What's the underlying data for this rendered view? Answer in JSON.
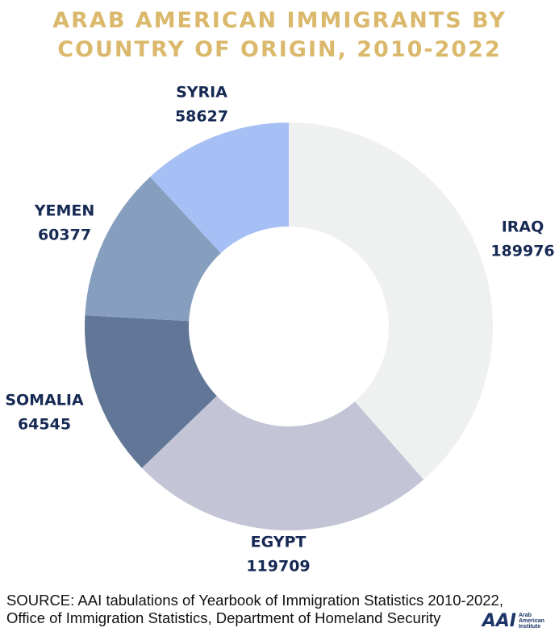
{
  "chart_data": {
    "type": "donut",
    "title": "ARAB AMERICAN IMMIGRANTS BY COUNTRY OF ORIGIN, 2010-2022",
    "categories": [
      "IRAQ",
      "EGYPT",
      "SOMALIA",
      "YEMEN",
      "SYRIA"
    ],
    "values": [
      189976,
      119709,
      64545,
      60377,
      58627
    ],
    "colors": [
      "#eff0f0",
      "#c3c4d6",
      "#627797",
      "#879fbe",
      "#a6bff5"
    ],
    "source": "SOURCE: AAI tabulations of Yearbook of Immigration Statistics 2010-2022, Office of Immigration Statistics, Department of Homeland Security"
  },
  "logo": {
    "mark": "AAI",
    "text": "Arab American Institute"
  }
}
